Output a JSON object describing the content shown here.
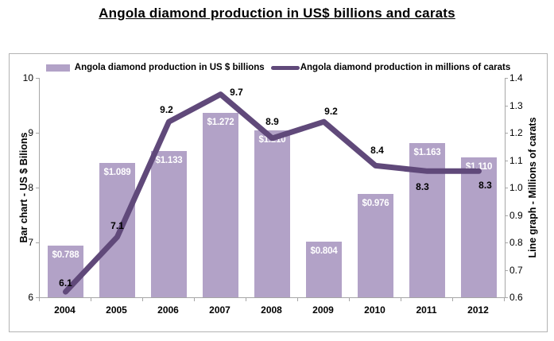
{
  "title": "Angola diamond production in US$ billions and carats",
  "legend": {
    "items": [
      {
        "label": "Angola diamond production in US $ billions",
        "swatch": "bar-swatch",
        "color": "#b2a2c7"
      },
      {
        "label": "Angola diamond production in millions of carats",
        "swatch": "line-swatch",
        "color": "#60497a"
      }
    ]
  },
  "left_axis": {
    "title": "Bar chart - US $ Bilions",
    "min": 6,
    "max": 10,
    "ticks": [
      "10",
      "9",
      "8",
      "7",
      "6"
    ]
  },
  "right_axis": {
    "title": "Line graph - Millions of carats",
    "min": 0.6,
    "max": 1.4,
    "ticks": [
      "1.4",
      "1.3",
      "1.2",
      "1.1",
      "1.0",
      "0.9",
      "0.8",
      "0.7",
      "0.6"
    ]
  },
  "chart_data": {
    "type": "bar+line combo",
    "title": "Angola diamond production in US$ billions and carats",
    "categories": [
      "2004",
      "2005",
      "2006",
      "2007",
      "2008",
      "2009",
      "2010",
      "2011",
      "2012"
    ],
    "grid": "off",
    "legend_position": "top-center",
    "series": [
      {
        "name": "Angola diamond production in US $ billions",
        "type": "bar",
        "color": "#b2a2c7",
        "plotted_against": "right_axis_scale_0.6_to_1.4",
        "values": [
          0.788,
          1.089,
          1.133,
          1.272,
          1.21,
          0.804,
          0.976,
          1.163,
          1.11
        ],
        "labels": [
          "$0.788",
          "$1.089",
          "$1.133",
          "$1.272",
          "$1.210",
          "$0.804",
          "$0.976",
          "$1.163",
          "$1.110"
        ],
        "label_color": "#ffffff"
      },
      {
        "name": "Angola diamond production in millions of carats",
        "type": "line",
        "color": "#60497a",
        "stroke_width": 7,
        "plotted_against": "left_axis_scale_6_to_10",
        "values": [
          6.1,
          7.1,
          9.2,
          9.7,
          8.9,
          9.2,
          8.4,
          8.3,
          8.3
        ],
        "labels": [
          "6.1",
          "7.1",
          "9.2",
          "9.7",
          "8.9",
          "9.2",
          "8.4",
          "8.3",
          "8.3"
        ],
        "label_color": "#000000",
        "label_offsets": [
          [
            0,
            -11
          ],
          [
            0,
            -14
          ],
          [
            -3,
            -15
          ],
          [
            20,
            -3
          ],
          [
            0,
            -21
          ],
          [
            9,
            -13
          ],
          [
            2,
            -19
          ],
          [
            -6,
            20
          ],
          [
            8,
            18
          ]
        ]
      }
    ]
  }
}
